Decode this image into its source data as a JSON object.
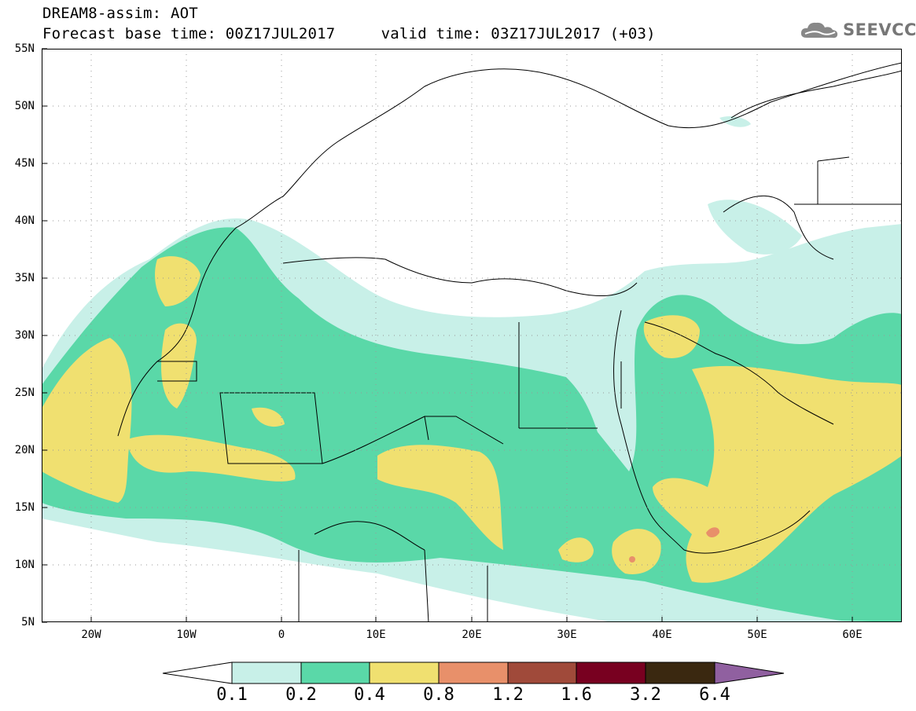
{
  "header": {
    "line1": "DREAM8-assim: AOT",
    "line2": "Forecast base time: 00Z17JUL2017     valid time: 03Z17JUL2017 (+03)"
  },
  "logo": {
    "text": "SEEVCCC",
    "icon": "cloud-icon"
  },
  "map": {
    "lat_labels": [
      "55N",
      "50N",
      "45N",
      "40N",
      "35N",
      "30N",
      "25N",
      "20N",
      "15N",
      "10N",
      "5N"
    ],
    "lon_labels": [
      "20W",
      "10W",
      "0",
      "10E",
      "20E",
      "30E",
      "40E",
      "50E",
      "60E"
    ],
    "lat_range": [
      5,
      55
    ],
    "lon_range": [
      -25,
      65
    ],
    "grid": "dotted"
  },
  "colorbar": {
    "labels": [
      "0.1",
      "0.2",
      "0.4",
      "0.8",
      "1.2",
      "1.6",
      "3.2",
      "6.4"
    ],
    "colors": [
      "#ffffff",
      "#c8f0e8",
      "#5ad8a8",
      "#f0e070",
      "#e8906a",
      "#a04a3a",
      "#780020",
      "#3a2810",
      "#9060a0"
    ]
  }
}
